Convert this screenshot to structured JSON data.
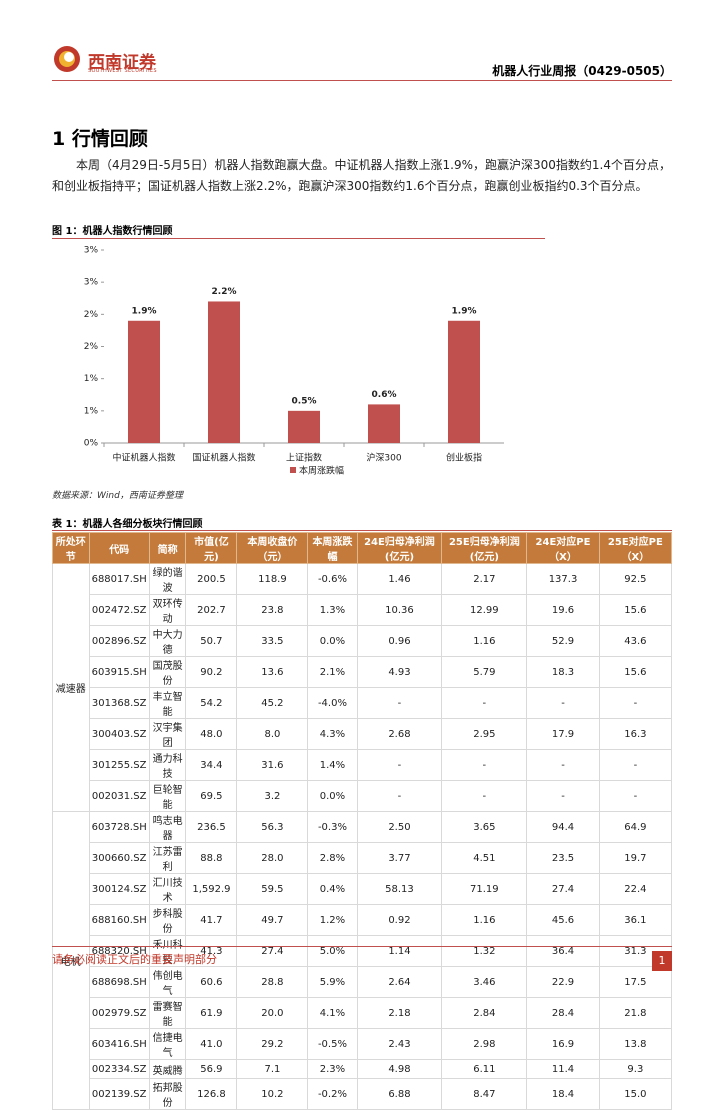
{
  "header": {
    "logo": "西南证券",
    "logo_en": "SOUTHWEST SECURITIES",
    "report_title": "机器人行业周报（0429-0505）"
  },
  "section": "1 行情回顾",
  "paragraph": "本周（4月29日-5月5日）机器人指数跑赢大盘。中证机器人指数上涨1.9%，跑赢沪深300指数约1.4个百分点，和创业板指持平；国证机器人指数上涨2.2%，跑赢沪深300指数约1.6个百分点，跑赢创业板指约0.3个百分点。",
  "figure_caption": "图 1：机器人指数行情回顾",
  "chart_data": {
    "type": "bar",
    "categories": [
      "中证机器人指数",
      "国证机器人指数",
      "上证指数",
      "沪深300",
      "创业板指"
    ],
    "series": [
      {
        "name": "本周涨跌幅",
        "color": "#c0504d",
        "values": [
          1.9,
          2.2,
          0.5,
          0.6,
          1.9
        ],
        "value_labels": [
          "1.9%",
          "2.2%",
          "0.5%",
          "0.6%",
          "1.9%"
        ]
      }
    ],
    "ylim": [
      0,
      3
    ],
    "yticks": [
      {
        "value": 0,
        "label": "0%"
      },
      {
        "value": 0.5,
        "label": "1%"
      },
      {
        "value": 1,
        "label": "1%"
      },
      {
        "value": 1.5,
        "label": "2%"
      },
      {
        "value": 2,
        "label": "2%"
      },
      {
        "value": 2.5,
        "label": "3%"
      },
      {
        "value": 3,
        "label": "3%"
      }
    ],
    "legend": "bottom"
  },
  "source": "数据来源：Wind，西南证券整理",
  "table_caption": "表 1：机器人各细分板块行情回顾",
  "table": {
    "header": [
      "所处环节",
      "代码",
      "简称",
      "市值(亿元)",
      "本周收盘价（元）",
      "本周涨跌幅",
      "24E归母净利润(亿元)",
      "25E归母净利润(亿元)",
      "24E对应PE（X）",
      "25E对应PE（X）"
    ],
    "groups": [
      {
        "name": "减速器",
        "rows": [
          [
            "688017.SH",
            "绿的谐波",
            "200.5",
            "118.9",
            "-0.6%",
            "1.46",
            "2.17",
            "137.3",
            "92.5"
          ],
          [
            "002472.SZ",
            "双环传动",
            "202.7",
            "23.8",
            "1.3%",
            "10.36",
            "12.99",
            "19.6",
            "15.6"
          ],
          [
            "002896.SZ",
            "中大力德",
            "50.7",
            "33.5",
            "0.0%",
            "0.96",
            "1.16",
            "52.9",
            "43.6"
          ],
          [
            "603915.SH",
            "国茂股份",
            "90.2",
            "13.6",
            "2.1%",
            "4.93",
            "5.79",
            "18.3",
            "15.6"
          ],
          [
            "301368.SZ",
            "丰立智能",
            "54.2",
            "45.2",
            "-4.0%",
            "-",
            "-",
            "-",
            "-"
          ],
          [
            "300403.SZ",
            "汉宇集团",
            "48.0",
            "8.0",
            "4.3%",
            "2.68",
            "2.95",
            "17.9",
            "16.3"
          ],
          [
            "301255.SZ",
            "通力科技",
            "34.4",
            "31.6",
            "1.4%",
            "-",
            "-",
            "-",
            "-"
          ],
          [
            "002031.SZ",
            "巨轮智能",
            "69.5",
            "3.2",
            "0.0%",
            "-",
            "-",
            "-",
            "-"
          ]
        ]
      },
      {
        "name": "电机",
        "rows": [
          [
            "603728.SH",
            "鸣志电器",
            "236.5",
            "56.3",
            "-0.3%",
            "2.50",
            "3.65",
            "94.4",
            "64.9"
          ],
          [
            "300660.SZ",
            "江苏雷利",
            "88.8",
            "28.0",
            "2.8%",
            "3.77",
            "4.51",
            "23.5",
            "19.7"
          ],
          [
            "300124.SZ",
            "汇川技术",
            "1,592.9",
            "59.5",
            "0.4%",
            "58.13",
            "71.19",
            "27.4",
            "22.4"
          ],
          [
            "688160.SH",
            "步科股份",
            "41.7",
            "49.7",
            "1.2%",
            "0.92",
            "1.16",
            "45.6",
            "36.1"
          ],
          [
            "688320.SH",
            "禾川科技",
            "41.3",
            "27.4",
            "5.0%",
            "1.14",
            "1.32",
            "36.4",
            "31.3"
          ],
          [
            "688698.SH",
            "伟创电气",
            "60.6",
            "28.8",
            "5.9%",
            "2.64",
            "3.46",
            "22.9",
            "17.5"
          ],
          [
            "002979.SZ",
            "雷赛智能",
            "61.9",
            "20.0",
            "4.1%",
            "2.18",
            "2.84",
            "28.4",
            "21.8"
          ],
          [
            "603416.SH",
            "信捷电气",
            "41.0",
            "29.2",
            "-0.5%",
            "2.43",
            "2.98",
            "16.9",
            "13.8"
          ],
          [
            "002334.SZ",
            "英威腾",
            "56.9",
            "7.1",
            "2.3%",
            "4.98",
            "6.11",
            "11.4",
            "9.3"
          ],
          [
            "002139.SZ",
            "拓邦股份",
            "126.8",
            "10.2",
            "-0.2%",
            "6.88",
            "8.47",
            "18.4",
            "15.0"
          ]
        ]
      }
    ]
  },
  "footer": {
    "disclaimer": "请务必阅读正文后的重要声明部分",
    "page": "1"
  }
}
